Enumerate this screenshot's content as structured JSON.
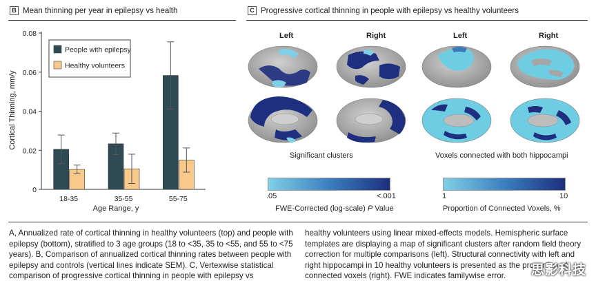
{
  "panel_b": {
    "letter": "B",
    "title": "Mean thinning per year in epilepsy vs health"
  },
  "panel_c": {
    "letter": "C",
    "title": "Progressive cortical thinning in people with epilepsy vs healthy volunteers",
    "hemisphere_labels": [
      "Left",
      "Right",
      "Left",
      "Right"
    ],
    "left_group_label": "Significant clusters",
    "right_group_label": "Voxels connected with both hippocampi",
    "colorbar_left": {
      "min_label": ".05",
      "max_label": "<.001",
      "title_prefix": "FWE-Corrected (log-scale)",
      "title_italic": "P",
      "title_suffix": "Value"
    },
    "colorbar_right": {
      "min_label": "1",
      "max_label": "10",
      "title": "Proportion of Connected Voxels, %"
    },
    "colors": {
      "light": "#7fd0e6",
      "dark": "#1c2f7e",
      "brain_gray": "#b8b8b8"
    }
  },
  "chart_data": {
    "type": "bar",
    "categories": [
      "18-35",
      "35-55",
      "55-75"
    ],
    "series": [
      {
        "name": "People with epilepsy",
        "color": "#2d4a55",
        "values": [
          0.0205,
          0.0233,
          0.0583
        ],
        "sem": [
          0.0073,
          0.0055,
          0.0172
        ]
      },
      {
        "name": "Healthy volunteers",
        "color": "#f9c98b",
        "values": [
          0.0102,
          0.0105,
          0.015
        ],
        "sem": [
          0.0022,
          0.0075,
          0.0062
        ]
      }
    ],
    "ylabel": "Cortical Thinning, mm/y",
    "xlabel": "Age Range, y",
    "ylim": [
      0,
      0.08
    ],
    "yticks": [
      "0",
      "0.02",
      "0.04",
      "0.06",
      "0.08"
    ],
    "legend": "top-left"
  },
  "caption": {
    "left": "A, Annualized rate of cortical thinning in healthy volunteers (top) and people with epilepsy (bottom), stratified to 3 age groups (18 to <35, 35 to <55, and 55 to <75 years). B, Comparison of annualized cortical thinning rates between people with epilepsy and controls (vertical lines indicate SEM). C, Vertexwise statistical comparison of progressive cortical thinning in people with epilepsy vs",
    "right": "healthy volunteers using linear mixed-effects models. Hemispheric surface templates are displaying a map of significant clusters after random field theory correction for multiple comparisons (left). Structural connectivity with left and right hippocampi in 10 healthy volunteers is presented as the proportion of connected voxels (right). FWE indicates familywise error."
  },
  "watermark": "思影科技"
}
